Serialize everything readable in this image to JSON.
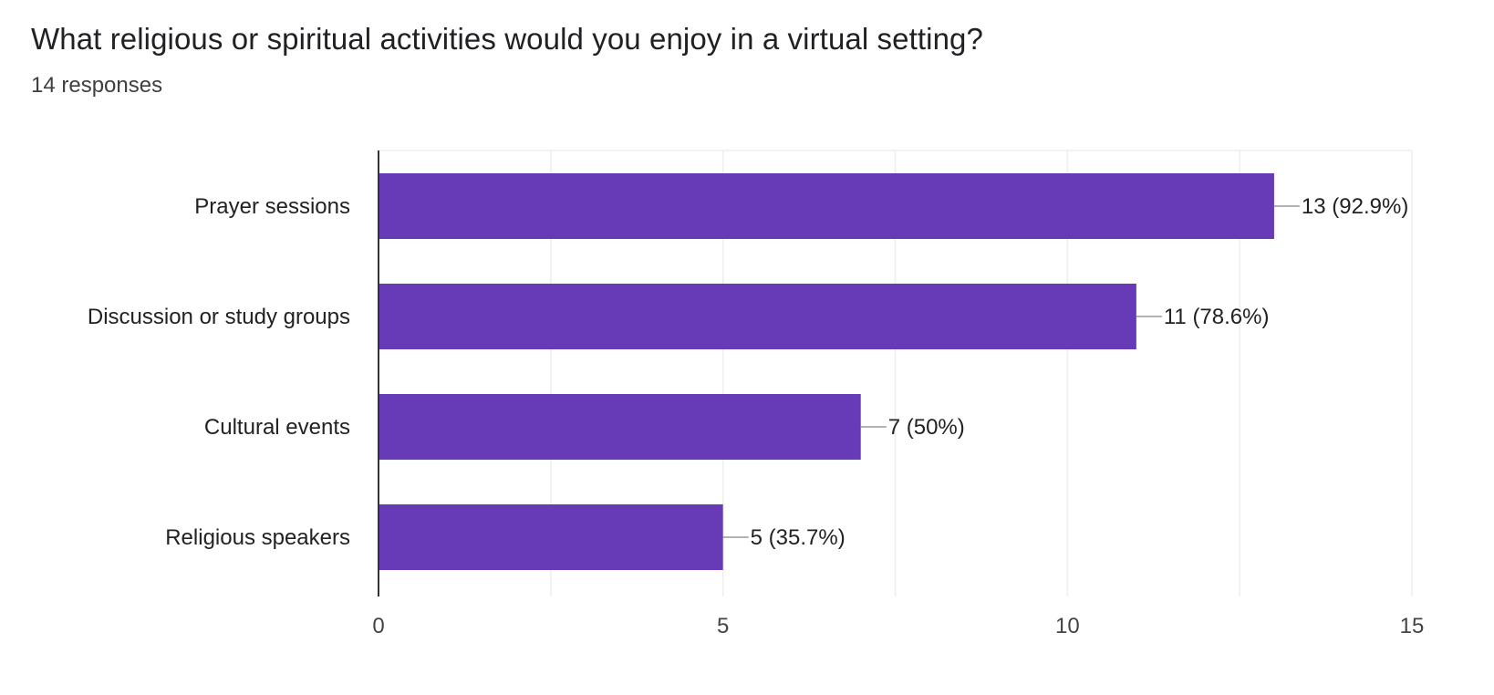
{
  "header": {
    "title": "What religious or spiritual activities would you enjoy in a virtual setting?",
    "subtitle": "14 responses"
  },
  "chart_data": {
    "type": "bar",
    "orientation": "horizontal",
    "title": "What religious or spiritual activities would you enjoy in a virtual setting?",
    "subtitle": "14 responses",
    "categories": [
      "Prayer sessions",
      "Discussion or study groups",
      "Cultural events",
      "Religious speakers"
    ],
    "values": [
      13,
      11,
      7,
      5
    ],
    "value_labels": [
      "13 (92.9%)",
      "11 (78.6%)",
      "7 (50%)",
      "5 (35.7%)"
    ],
    "xlim": [
      0,
      15
    ],
    "xticks": [
      0,
      5,
      10,
      15
    ],
    "xtick_labels": [
      "0",
      "5",
      "10",
      "15"
    ],
    "grid": true,
    "legend": "none",
    "colors": {
      "bar": "#673ab7",
      "grid": "#eeeeee",
      "axis": "#333333",
      "leader": "#999999"
    }
  }
}
